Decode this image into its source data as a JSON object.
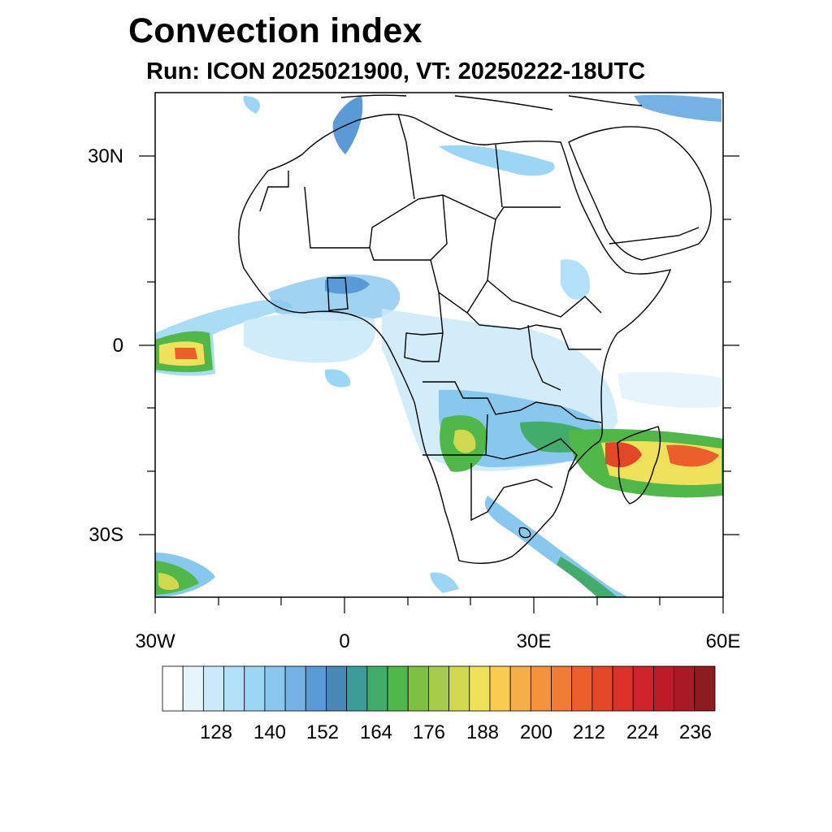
{
  "title": "Convection index",
  "subtitle": "Run: ICON 2025021900,  VT: 20250222-18UTC",
  "axes": {
    "lat_labels": [
      "30N",
      "0",
      "30S"
    ],
    "lon_labels": [
      "30W",
      "0",
      "30E",
      "60E"
    ]
  },
  "colorbar": {
    "colors": [
      "#ffffff",
      "#e6f4fc",
      "#cbe9f9",
      "#b2e0f8",
      "#9bd6f5",
      "#88c8ee",
      "#74b2e6",
      "#5a9bd7",
      "#4887b6",
      "#3c9c98",
      "#42ad6b",
      "#4fb848",
      "#7dc142",
      "#a7cc4b",
      "#d0d84e",
      "#f0e15a",
      "#f9cb4f",
      "#f6ae46",
      "#f4933b",
      "#f07b32",
      "#ec5f2b",
      "#e44727",
      "#dc3129",
      "#d02229",
      "#be1b28",
      "#a81b24",
      "#8f1a1f"
    ],
    "labels": [
      "128",
      "140",
      "152",
      "164",
      "176",
      "188",
      "200",
      "212",
      "224",
      "236"
    ]
  }
}
